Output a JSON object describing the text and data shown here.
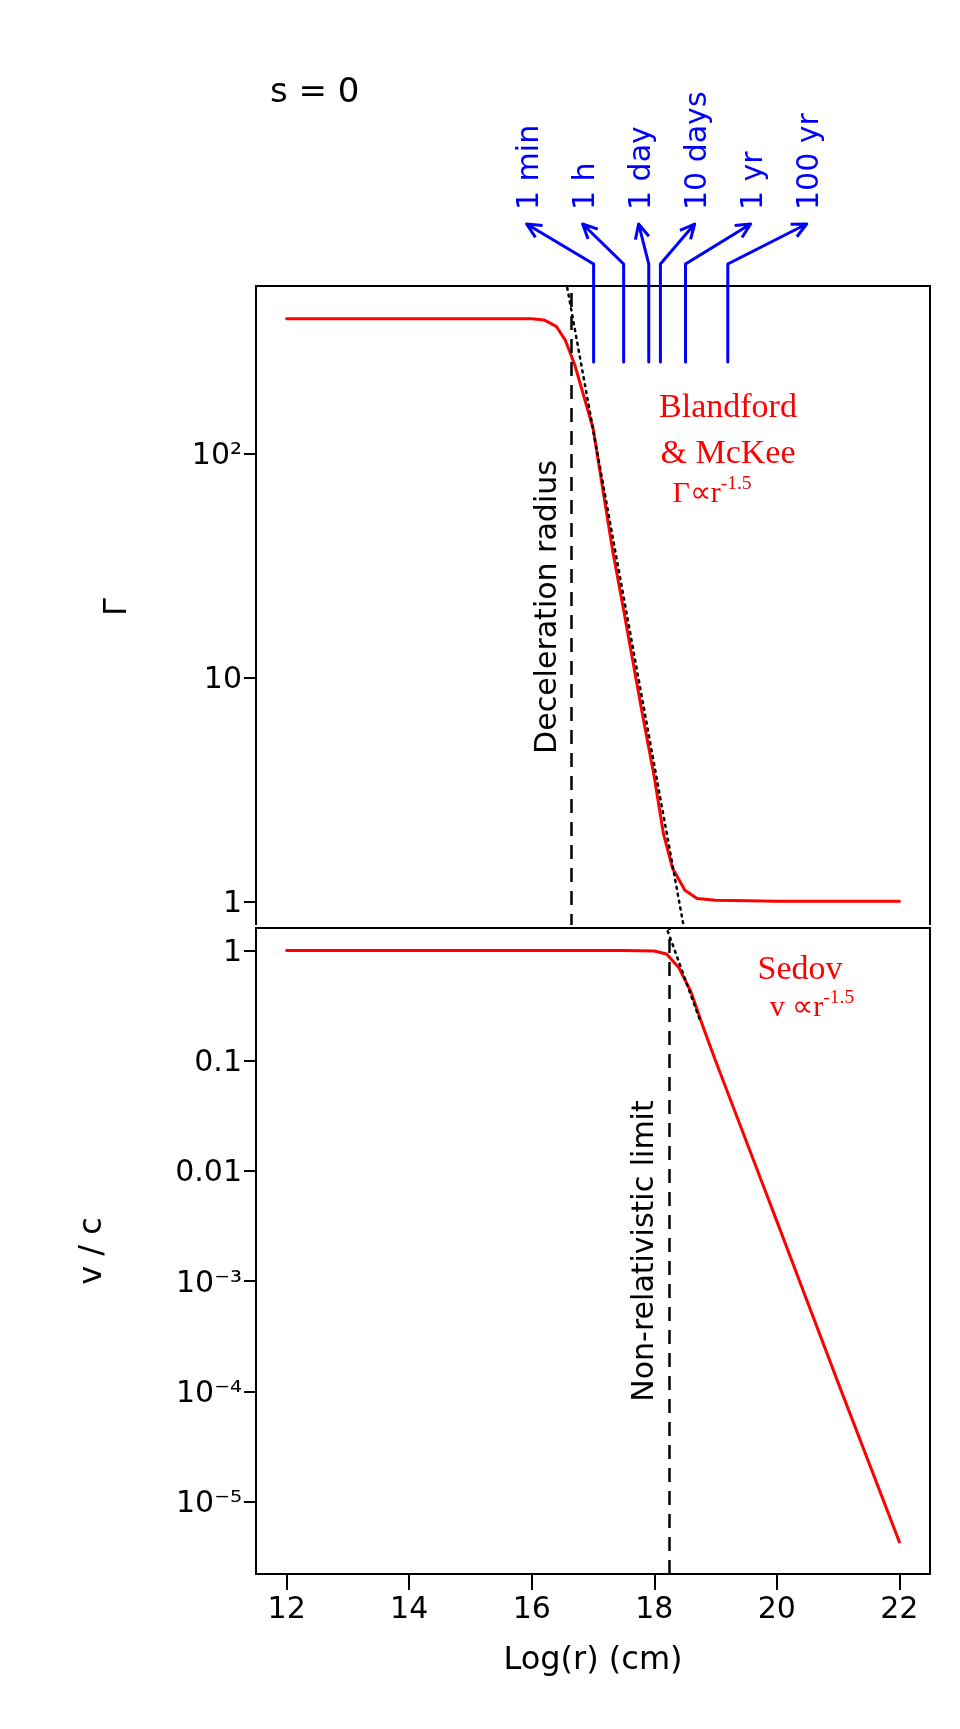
{
  "chart_data": [
    {
      "type": "line",
      "title": "s = 0",
      "ylabel": "Γ",
      "xlim": [
        11.5,
        22.5
      ],
      "xticks": [
        12,
        14,
        16,
        18,
        20,
        22
      ],
      "ylim": [
        0.76,
        560
      ],
      "yticks": [
        {
          "value": 1,
          "label": "1"
        },
        {
          "value": 10,
          "label": "10"
        },
        {
          "value": 100,
          "label": "10²"
        }
      ],
      "log": "y",
      "tick_labels": "y",
      "series": [
        {
          "color": "#ff0000",
          "x": [
            12,
            16,
            16.2,
            16.4,
            16.55,
            16.7,
            17.0,
            17.32,
            17.5,
            17.8,
            18.0,
            18.15,
            18.3,
            18.5,
            18.7,
            19.0,
            20,
            22
          ],
          "values": [
            400,
            400,
            395,
            370,
            320,
            250,
            130,
            37,
            20,
            7,
            3.6,
            2,
            1.4,
            1.12,
            1.03,
            1.01,
            1,
            1
          ]
        },
        {
          "color": "#000000",
          "line_style": "dotted",
          "x": [
            16.58,
            18.47
          ],
          "values": [
            550,
            0.8
          ]
        }
      ],
      "ref_lines": [
        {
          "axis": "x",
          "value": 16.65,
          "label": "Deceleration radius",
          "color": "#000000",
          "line_style": "dashed"
        },
        {
          "axis": "x",
          "value": 17.01,
          "label": "1 min",
          "color": "#0000ff",
          "line_style": "solid"
        },
        {
          "axis": "x",
          "value": 17.5,
          "label": "1 h",
          "color": "#0000ff",
          "line_style": "solid"
        },
        {
          "axis": "x",
          "value": 17.91,
          "label": "1 day",
          "color": "#0000ff",
          "line_style": "solid"
        },
        {
          "axis": "x",
          "value": 18.1,
          "label": "10 days",
          "color": "#0000ff",
          "line_style": "solid"
        },
        {
          "axis": "x",
          "value": 18.51,
          "label": "1 yr",
          "color": "#0000ff",
          "line_style": "solid"
        },
        {
          "axis": "x",
          "value": 19.2,
          "label": "100 yr",
          "color": "#0000ff",
          "line_style": "solid"
        }
      ],
      "annotations": [
        "Blandford",
        "& McKee",
        "Γ∝r$^{-1.5}$"
      ]
    },
    {
      "type": "line",
      "xlabel": "Log(r) (cm)",
      "ylabel": "v / c",
      "xlim": [
        11.5,
        22.5
      ],
      "xticks": [
        12,
        14,
        16,
        18,
        20,
        22
      ],
      "ylim": [
        2.2e-06,
        1.6
      ],
      "yticks": [
        {
          "value": 1,
          "label": "1"
        },
        {
          "value": 0.1,
          "label": "0.1"
        },
        {
          "value": 0.01,
          "label": "0.01"
        },
        {
          "value": 0.001,
          "label": "10⁻³"
        },
        {
          "value": 0.0001,
          "label": "10⁻⁴"
        },
        {
          "value": 1e-05,
          "label": "10⁻⁵"
        }
      ],
      "log": "y",
      "series": [
        {
          "color": "#ff0000",
          "x": [
            12,
            17.5,
            18.0,
            18.2,
            18.4,
            18.6,
            18.8,
            19.0,
            20,
            21,
            22
          ],
          "values": [
            1,
            1,
            0.99,
            0.93,
            0.7,
            0.42,
            0.2,
            0.1,
            0.0035,
            0.00012,
            4.3e-06
          ]
        },
        {
          "color": "#000000",
          "line_style": "dotted",
          "x": [
            18.22,
            18.75
          ],
          "values": [
            1.5,
            0.23
          ]
        }
      ],
      "ref_lines": [
        {
          "axis": "x",
          "value": 18.24,
          "label": "Non-relativistic limit",
          "color": "#000000",
          "line_style": "dashed"
        }
      ],
      "annotations": [
        "Sedov",
        "v ∝r$^{-1.5}$"
      ]
    }
  ]
}
